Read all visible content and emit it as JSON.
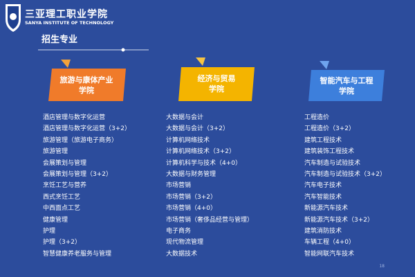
{
  "header": {
    "school": "三亚理工职业学院",
    "school_en": "SANYA INSTITUTE OF TECHNOLOGY"
  },
  "section_title": "招生专业",
  "columns": [
    {
      "title": [
        "旅游与康体产业",
        "学院"
      ],
      "items": [
        "酒店管理与数字化运营",
        "酒店管理与数字化运营（3+2）",
        "旅游管理（旅游电子商务）",
        "旅游管理",
        "会展策划与管理",
        "会展策划与管理（3+2）",
        "烹饪工艺与营养",
        "西式烹饪工艺",
        "中西面点工艺",
        "健康管理",
        "护理",
        "护理（3+2）",
        "智慧健康养老服务与管理"
      ]
    },
    {
      "title": [
        "经济与贸易",
        "学院"
      ],
      "items": [
        "大数据与会计",
        "大数据与会计（3+2）",
        "计算机网络技术",
        "计算机网络技术（3+2）",
        "计算机科学与技术（4+0）",
        "大数据与财务管理",
        "市场营销",
        "市场营销（3+2）",
        "市场营销（4+0）",
        "市场营销（奢侈品经营与管理）",
        "电子商务",
        "现代物流管理",
        "大数据技术"
      ]
    },
    {
      "title": [
        "智能汽车与工程",
        "学院"
      ],
      "items": [
        "工程造价",
        "工程造价（3+2）",
        "建筑工程技术",
        "建筑装饰工程技术",
        "汽车制造与试验技术",
        "汽车制造与试验技术（3+2）",
        "汽车电子技术",
        "汽车智能技术",
        "新能源汽车技术",
        "新能源汽车技术（3+2）",
        "建筑消防技术",
        "车辆工程（4+0）",
        "智能网联汽车技术"
      ]
    }
  ],
  "page_number": "18"
}
